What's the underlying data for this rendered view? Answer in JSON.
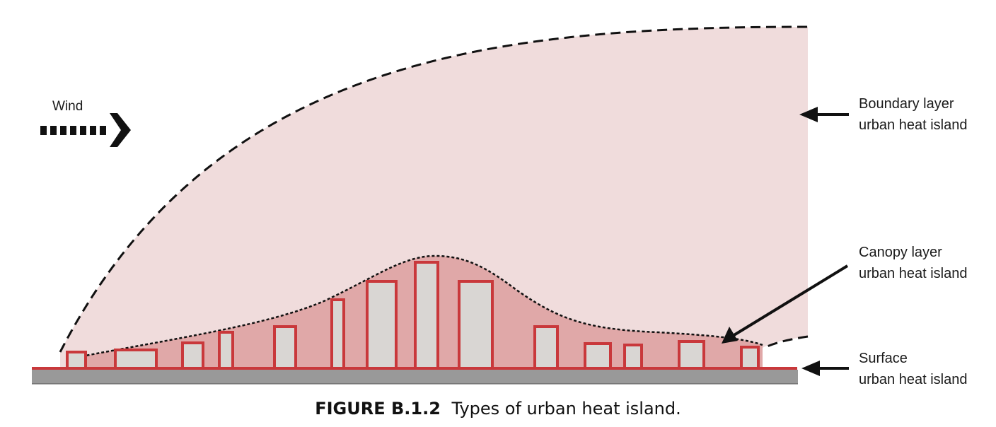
{
  "diagram": {
    "wind_label": "Wind",
    "boundary_layer": {
      "line1": "Boundary layer",
      "line2": "urban heat island"
    },
    "canopy_layer": {
      "line1": "Canopy layer",
      "line2": "urban heat island"
    },
    "surface": {
      "line1": "Surface",
      "line2": "urban heat island"
    },
    "colors": {
      "boundary_fill": "#f0dcdc",
      "canopy_fill": "#e0a8a8",
      "building_fill": "#d9d6d3",
      "building_outline": "#c9383b",
      "ground": "#999999",
      "arrow": "#111111"
    }
  },
  "caption": {
    "number": "FIGURE B.1.2",
    "text": "Types of urban heat island."
  }
}
